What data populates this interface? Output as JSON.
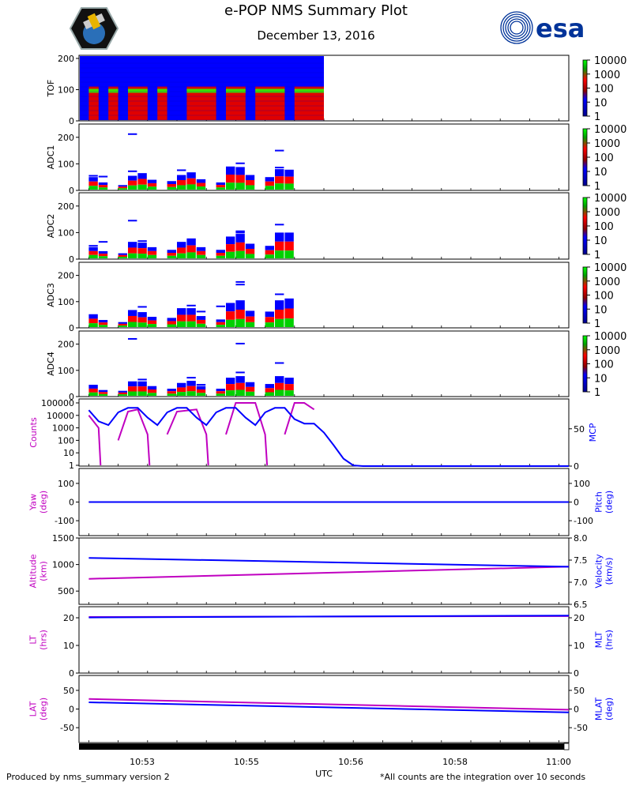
{
  "header": {
    "title": "e-POP NMS Summary Plot",
    "date": "December 13, 2016",
    "esa_logo_text": "esa",
    "mission_logo": "epop-satellite-logo"
  },
  "footer": {
    "left": "Produced by nms_summary version 2",
    "right": "*All counts are the integration over 10 seconds",
    "xlabel": "UTC"
  },
  "colors": {
    "blue": "#0000ff",
    "magenta": "#c000c0",
    "red": "#ff0000",
    "green": "#00d000",
    "esa": "#003399"
  },
  "chart_data": [
    {
      "type": "heatmap",
      "name": "TOF",
      "ylabel": "TOF",
      "ylim": [
        0,
        210
      ],
      "yticks": [
        0,
        100,
        200
      ],
      "colorbar": {
        "scale": "log",
        "ticks": [
          "10000",
          "1000",
          "100",
          "10",
          "1"
        ]
      },
      "blocks": [
        {
          "t0": "10:52:00",
          "t1": "10:52:10",
          "peak": 95
        },
        {
          "t0": "10:52:20",
          "t1": "10:52:30",
          "peak": 95
        },
        {
          "t0": "10:52:40",
          "t1": "10:53:00",
          "peak": 95
        },
        {
          "t0": "10:53:10",
          "t1": "10:53:20",
          "peak": 95
        },
        {
          "t0": "10:53:40",
          "t1": "10:54:10",
          "peak": 95
        },
        {
          "t0": "10:54:20",
          "t1": "10:54:40",
          "peak": 95
        },
        {
          "t0": "10:54:50",
          "t1": "10:55:20",
          "peak": 95
        },
        {
          "t0": "10:55:30",
          "t1": "10:56:00",
          "peak": 95
        }
      ],
      "data_end": "10:56:00"
    },
    {
      "type": "heatmap",
      "name": "ADC1",
      "ylabel": "ADC1",
      "ylim": [
        0,
        250
      ],
      "yticks": [
        0,
        100,
        200
      ],
      "colorbar": {
        "scale": "log",
        "ticks": [
          "10000",
          "1000",
          "100",
          "10",
          "1"
        ]
      },
      "blocks": [
        {
          "t0": "10:52:00",
          "t1": "10:52:10",
          "top": 50
        },
        {
          "t0": "10:52:10",
          "t1": "10:52:20",
          "top": 30
        },
        {
          "t0": "10:52:30",
          "t1": "10:52:40",
          "top": 20
        },
        {
          "t0": "10:52:40",
          "t1": "10:52:50",
          "top": 55
        },
        {
          "t0": "10:52:50",
          "t1": "10:53:00",
          "top": 65
        },
        {
          "t0": "10:53:00",
          "t1": "10:53:10",
          "top": 40
        },
        {
          "t0": "10:53:20",
          "t1": "10:53:30",
          "top": 35
        },
        {
          "t0": "10:53:30",
          "t1": "10:53:40",
          "top": 58
        },
        {
          "t0": "10:53:40",
          "t1": "10:53:50",
          "top": 68
        },
        {
          "t0": "10:53:50",
          "t1": "10:54:00",
          "top": 42
        },
        {
          "t0": "10:54:10",
          "t1": "10:54:20",
          "top": 30
        },
        {
          "t0": "10:54:20",
          "t1": "10:54:30",
          "top": 90
        },
        {
          "t0": "10:54:30",
          "t1": "10:54:40",
          "top": 88
        },
        {
          "t0": "10:54:40",
          "t1": "10:54:50",
          "top": 58
        },
        {
          "t0": "10:55:00",
          "t1": "10:55:10",
          "top": 50
        },
        {
          "t0": "10:55:10",
          "t1": "10:55:20",
          "top": 80
        },
        {
          "t0": "10:55:20",
          "t1": "10:55:30",
          "top": 78
        }
      ],
      "outliers": [
        {
          "t0": "10:52:00",
          "t1": "10:52:10",
          "v": 55
        },
        {
          "t0": "10:52:10",
          "t1": "10:52:20",
          "v": 52
        },
        {
          "t0": "10:52:40",
          "t1": "10:52:50",
          "v": 212
        },
        {
          "t0": "10:52:40",
          "t1": "10:52:50",
          "v": 72
        },
        {
          "t0": "10:53:30",
          "t1": "10:53:40",
          "v": 76
        },
        {
          "t0": "10:54:30",
          "t1": "10:54:40",
          "v": 102
        },
        {
          "t0": "10:55:10",
          "t1": "10:55:20",
          "v": 150
        },
        {
          "t0": "10:55:10",
          "t1": "10:55:20",
          "v": 86
        }
      ]
    },
    {
      "type": "heatmap",
      "name": "ADC2",
      "ylabel": "ADC2",
      "ylim": [
        0,
        250
      ],
      "yticks": [
        0,
        100,
        200
      ],
      "colorbar": {
        "scale": "log",
        "ticks": [
          "10000",
          "1000",
          "100",
          "10",
          "1"
        ]
      },
      "blocks": [
        {
          "t0": "10:52:00",
          "t1": "10:52:10",
          "top": 45
        },
        {
          "t0": "10:52:10",
          "t1": "10:52:20",
          "top": 30
        },
        {
          "t0": "10:52:30",
          "t1": "10:52:40",
          "top": 22
        },
        {
          "t0": "10:52:40",
          "t1": "10:52:50",
          "top": 65
        },
        {
          "t0": "10:52:50",
          "t1": "10:53:00",
          "top": 62
        },
        {
          "t0": "10:53:00",
          "t1": "10:53:10",
          "top": 45
        },
        {
          "t0": "10:53:20",
          "t1": "10:53:30",
          "top": 35
        },
        {
          "t0": "10:53:30",
          "t1": "10:53:40",
          "top": 65
        },
        {
          "t0": "10:53:40",
          "t1": "10:53:50",
          "top": 78
        },
        {
          "t0": "10:53:50",
          "t1": "10:54:00",
          "top": 45
        },
        {
          "t0": "10:54:10",
          "t1": "10:54:20",
          "top": 35
        },
        {
          "t0": "10:54:20",
          "t1": "10:54:30",
          "top": 85
        },
        {
          "t0": "10:54:30",
          "t1": "10:54:40",
          "top": 95
        },
        {
          "t0": "10:54:40",
          "t1": "10:54:50",
          "top": 58
        },
        {
          "t0": "10:55:00",
          "t1": "10:55:10",
          "top": 50
        },
        {
          "t0": "10:55:10",
          "t1": "10:55:20",
          "top": 100
        },
        {
          "t0": "10:55:20",
          "t1": "10:55:30",
          "top": 100
        }
      ],
      "outliers": [
        {
          "t0": "10:52:00",
          "t1": "10:52:10",
          "v": 50
        },
        {
          "t0": "10:52:10",
          "t1": "10:52:20",
          "v": 65
        },
        {
          "t0": "10:52:40",
          "t1": "10:52:50",
          "v": 145
        },
        {
          "t0": "10:52:50",
          "t1": "10:53:00",
          "v": 68
        },
        {
          "t0": "10:54:30",
          "t1": "10:54:40",
          "v": 105
        },
        {
          "t0": "10:54:30",
          "t1": "10:54:40",
          "v": 100
        },
        {
          "t0": "10:55:10",
          "t1": "10:55:20",
          "v": 130
        }
      ]
    },
    {
      "type": "heatmap",
      "name": "ADC3",
      "ylabel": "ADC3",
      "ylim": [
        0,
        250
      ],
      "yticks": [
        0,
        100,
        200
      ],
      "colorbar": {
        "scale": "log",
        "ticks": [
          "10000",
          "1000",
          "100",
          "10",
          "1"
        ]
      },
      "blocks": [
        {
          "t0": "10:52:00",
          "t1": "10:52:10",
          "top": 52
        },
        {
          "t0": "10:52:10",
          "t1": "10:52:20",
          "top": 30
        },
        {
          "t0": "10:52:30",
          "t1": "10:52:40",
          "top": 22
        },
        {
          "t0": "10:52:40",
          "t1": "10:52:50",
          "top": 68
        },
        {
          "t0": "10:52:50",
          "t1": "10:53:00",
          "top": 60
        },
        {
          "t0": "10:53:00",
          "t1": "10:53:10",
          "top": 42
        },
        {
          "t0": "10:53:20",
          "t1": "10:53:30",
          "top": 38
        },
        {
          "t0": "10:53:30",
          "t1": "10:53:40",
          "top": 75
        },
        {
          "t0": "10:53:40",
          "t1": "10:53:50",
          "top": 75
        },
        {
          "t0": "10:53:50",
          "t1": "10:54:00",
          "top": 45
        },
        {
          "t0": "10:54:10",
          "t1": "10:54:20",
          "top": 32
        },
        {
          "t0": "10:54:20",
          "t1": "10:54:30",
          "top": 95
        },
        {
          "t0": "10:54:30",
          "t1": "10:54:40",
          "top": 105
        },
        {
          "t0": "10:54:40",
          "t1": "10:54:50",
          "top": 65
        },
        {
          "t0": "10:55:00",
          "t1": "10:55:10",
          "top": 62
        },
        {
          "t0": "10:55:10",
          "t1": "10:55:20",
          "top": 105
        },
        {
          "t0": "10:55:20",
          "t1": "10:55:30",
          "top": 112
        }
      ],
      "outliers": [
        {
          "t0": "10:52:50",
          "t1": "10:53:00",
          "v": 80
        },
        {
          "t0": "10:53:40",
          "t1": "10:53:50",
          "v": 85
        },
        {
          "t0": "10:53:50",
          "t1": "10:54:00",
          "v": 62
        },
        {
          "t0": "10:54:10",
          "t1": "10:54:20",
          "v": 82
        },
        {
          "t0": "10:54:30",
          "t1": "10:54:40",
          "v": 175
        },
        {
          "t0": "10:54:30",
          "t1": "10:54:40",
          "v": 165
        },
        {
          "t0": "10:55:10",
          "t1": "10:55:20",
          "v": 128
        }
      ]
    },
    {
      "type": "heatmap",
      "name": "ADC4",
      "ylabel": "ADC4",
      "ylim": [
        0,
        250
      ],
      "yticks": [
        0,
        100,
        200
      ],
      "colorbar": {
        "scale": "log",
        "ticks": [
          "10000",
          "1000",
          "100",
          "10",
          "1"
        ]
      },
      "blocks": [
        {
          "t0": "10:52:00",
          "t1": "10:52:10",
          "top": 45
        },
        {
          "t0": "10:52:10",
          "t1": "10:52:20",
          "top": 25
        },
        {
          "t0": "10:52:30",
          "t1": "10:52:40",
          "top": 22
        },
        {
          "t0": "10:52:40",
          "t1": "10:52:50",
          "top": 58
        },
        {
          "t0": "10:52:50",
          "t1": "10:53:00",
          "top": 58
        },
        {
          "t0": "10:53:00",
          "t1": "10:53:10",
          "top": 40
        },
        {
          "t0": "10:53:20",
          "t1": "10:53:30",
          "top": 30
        },
        {
          "t0": "10:53:30",
          "t1": "10:53:40",
          "top": 52
        },
        {
          "t0": "10:53:40",
          "t1": "10:53:50",
          "top": 60
        },
        {
          "t0": "10:53:50",
          "t1": "10:54:00",
          "top": 40
        },
        {
          "t0": "10:54:10",
          "t1": "10:54:20",
          "top": 30
        },
        {
          "t0": "10:54:20",
          "t1": "10:54:30",
          "top": 72
        },
        {
          "t0": "10:54:30",
          "t1": "10:54:40",
          "top": 78
        },
        {
          "t0": "10:54:40",
          "t1": "10:54:50",
          "top": 55
        },
        {
          "t0": "10:55:00",
          "t1": "10:55:10",
          "top": 48
        },
        {
          "t0": "10:55:10",
          "t1": "10:55:20",
          "top": 78
        },
        {
          "t0": "10:55:20",
          "t1": "10:55:30",
          "top": 72
        }
      ],
      "outliers": [
        {
          "t0": "10:52:40",
          "t1": "10:52:50",
          "v": 220
        },
        {
          "t0": "10:52:50",
          "t1": "10:53:00",
          "v": 65
        },
        {
          "t0": "10:53:40",
          "t1": "10:53:50",
          "v": 72
        },
        {
          "t0": "10:53:50",
          "t1": "10:54:00",
          "v": 45
        },
        {
          "t0": "10:54:30",
          "t1": "10:54:40",
          "v": 202
        },
        {
          "t0": "10:54:30",
          "t1": "10:54:40",
          "v": 92
        },
        {
          "t0": "10:55:10",
          "t1": "10:55:20",
          "v": 128
        }
      ]
    },
    {
      "type": "line",
      "name": "counts-mcp",
      "ylabel_left": "Counts",
      "ylabel_right": "MCP",
      "yscale_left": "log",
      "ylim_left": [
        1,
        100000
      ],
      "yticks_left": [
        "100000",
        "10000",
        "1000",
        "100",
        "10",
        "1"
      ],
      "ylim_right": [
        0,
        90
      ],
      "yticks_right": [
        0,
        50
      ],
      "series": [
        {
          "axis": "left",
          "color": "#c000c0",
          "x": [
            "10:52:00",
            "10:52:10",
            "10:52:12",
            "10:52:30",
            "10:52:40",
            "10:52:50",
            "10:53:00",
            "10:53:02",
            "10:53:20",
            "10:53:30",
            "10:53:50",
            "10:54:00",
            "10:54:02",
            "10:54:20",
            "10:54:30",
            "10:54:50",
            "10:55:00",
            "10:55:02",
            "10:55:20",
            "10:55:30",
            "10:55:40",
            "10:55:50"
          ],
          "y": [
            10000,
            1000,
            1,
            100,
            20000,
            30000,
            300,
            1,
            300,
            20000,
            30000,
            300,
            1,
            300,
            100000,
            100000,
            300,
            1,
            300,
            100000,
            100000,
            30000
          ],
          "gaps_before": [
            2,
            7,
            12,
            17
          ]
        },
        {
          "axis": "right",
          "color": "#0000ff",
          "x": [
            "10:52:00",
            "10:52:10",
            "10:52:20",
            "10:52:30",
            "10:52:40",
            "10:52:50",
            "10:53:00",
            "10:53:10",
            "10:53:20",
            "10:53:30",
            "10:53:40",
            "10:53:50",
            "10:54:00",
            "10:54:10",
            "10:54:20",
            "10:54:30",
            "10:54:40",
            "10:54:50",
            "10:55:00",
            "10:55:10",
            "10:55:20",
            "10:55:30",
            "10:55:40",
            "10:55:50",
            "10:56:00",
            "10:56:10",
            "10:56:20",
            "10:56:30",
            "10:56:40",
            "10:56:50",
            "10:57:00",
            "10:58:00",
            "10:59:00",
            "11:00:00",
            "11:00:10"
          ],
          "y": [
            75,
            60,
            55,
            72,
            78,
            78,
            65,
            55,
            72,
            78,
            78,
            65,
            55,
            72,
            78,
            78,
            65,
            55,
            72,
            78,
            78,
            63,
            57,
            57,
            45,
            28,
            10,
            1,
            0,
            0,
            0,
            0,
            0,
            0,
            0
          ]
        }
      ]
    },
    {
      "type": "line",
      "name": "yaw-pitch",
      "ylabel_left": "Yaw\n(deg)",
      "ylabel_right": "Pitch\n(deg)",
      "ylim_left": [
        -180,
        180
      ],
      "yticks_left": [
        100,
        0,
        -100
      ],
      "ylim_right": [
        -180,
        180
      ],
      "yticks_right": [
        100,
        0,
        -100
      ],
      "series": [
        {
          "axis": "left",
          "color": "#c000c0",
          "x": [
            "10:52:00",
            "11:00:10"
          ],
          "y": [
            0,
            0
          ]
        },
        {
          "axis": "right",
          "color": "#0000ff",
          "x": [
            "10:52:00",
            "11:00:10"
          ],
          "y": [
            0,
            0
          ]
        }
      ]
    },
    {
      "type": "line",
      "name": "altitude-velocity",
      "ylabel_left": "Altitude\n(km)",
      "ylabel_right": "Velocity\n(km/s)",
      "ylim_left": [
        250,
        1500
      ],
      "yticks_left": [
        1500,
        1000,
        500
      ],
      "ylim_right": [
        6.5,
        8.0
      ],
      "yticks_right": [
        "8.0",
        "7.5",
        "7.0",
        "6.5"
      ],
      "series": [
        {
          "axis": "left",
          "color": "#c000c0",
          "x": [
            "10:52:00",
            "11:00:10"
          ],
          "y": [
            730,
            960
          ]
        },
        {
          "axis": "right",
          "color": "#0000ff",
          "x": [
            "10:52:00",
            "11:00:10"
          ],
          "y": [
            7.55,
            7.35
          ]
        }
      ]
    },
    {
      "type": "line",
      "name": "lt-mlt",
      "ylabel_left": "LT\n(hrs)",
      "ylabel_right": "MLT\n(hrs)",
      "ylim_left": [
        0,
        24
      ],
      "yticks_left": [
        20,
        10,
        0
      ],
      "ylim_right": [
        0,
        24
      ],
      "yticks_right": [
        20,
        10,
        0
      ],
      "series": [
        {
          "axis": "left",
          "color": "#c000c0",
          "x": [
            "10:52:00",
            "11:00:10"
          ],
          "y": [
            20.3,
            20.6
          ]
        },
        {
          "axis": "right",
          "color": "#0000ff",
          "x": [
            "10:52:00",
            "11:00:10"
          ],
          "y": [
            20.1,
            20.8
          ]
        }
      ]
    },
    {
      "type": "line",
      "name": "lat-mlat",
      "ylabel_left": "LAT\n(deg)",
      "ylabel_right": "MLAT\n(deg)",
      "ylim_left": [
        -90,
        90
      ],
      "yticks_left": [
        50,
        0,
        -50
      ],
      "ylim_right": [
        -90,
        90
      ],
      "yticks_right": [
        50,
        0,
        -50
      ],
      "series": [
        {
          "axis": "left",
          "color": "#c000c0",
          "x": [
            "10:52:00",
            "11:00:10"
          ],
          "y": [
            27,
            -2
          ]
        },
        {
          "axis": "right",
          "color": "#0000ff",
          "x": [
            "10:52:00",
            "11:00:10"
          ],
          "y": [
            18,
            -9
          ]
        }
      ]
    }
  ],
  "x_axis": {
    "label": "UTC",
    "range": [
      "10:51:50",
      "11:00:10"
    ],
    "tick_labels": [
      "10:53",
      "10:55",
      "10:56",
      "10:58",
      "11:00"
    ]
  }
}
